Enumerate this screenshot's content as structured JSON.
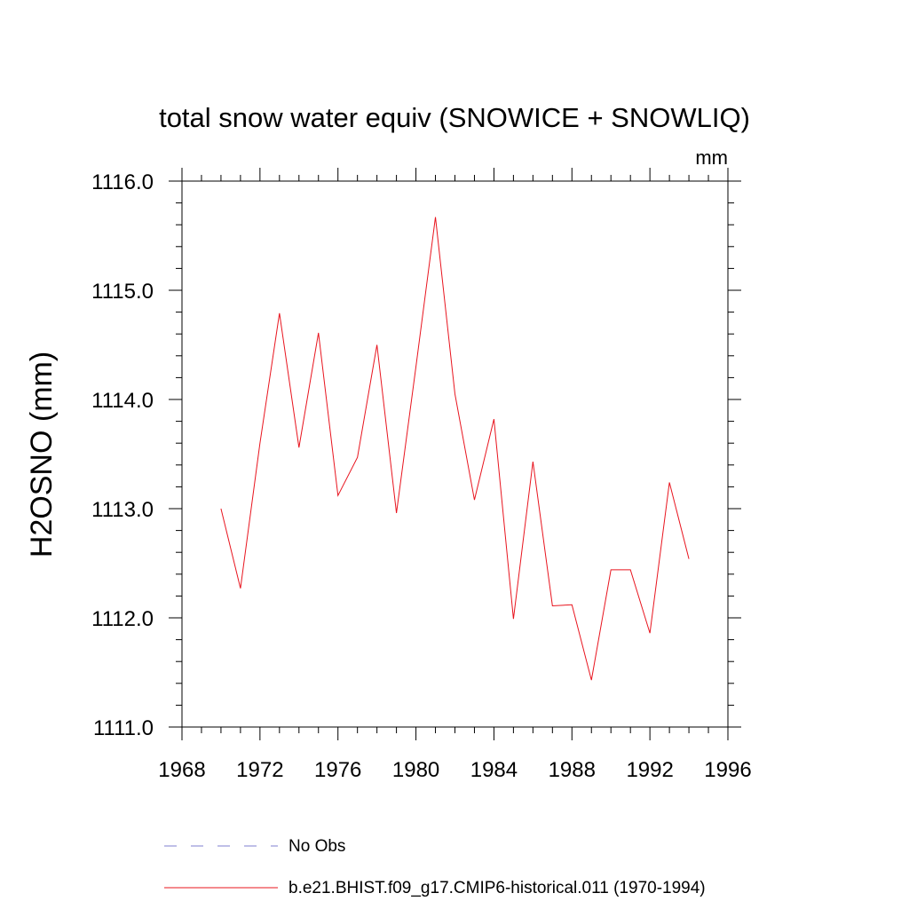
{
  "chart_data": {
    "type": "line",
    "title": "total snow water equiv (SNOWICE + SNOWLIQ)",
    "units": "mm",
    "xlabel": "",
    "ylabel": "H2OSNO  (mm)",
    "xlim": [
      1968,
      1996
    ],
    "ylim": [
      1111.0,
      1116.0
    ],
    "grid": false,
    "x_ticks": [
      1968,
      1972,
      1976,
      1980,
      1984,
      1988,
      1992,
      1996
    ],
    "x_tick_labels": [
      "1968",
      "1972",
      "1976",
      "1980",
      "1984",
      "1988",
      "1992",
      "1996"
    ],
    "y_ticks": [
      1111.0,
      1112.0,
      1113.0,
      1114.0,
      1115.0,
      1116.0
    ],
    "y_tick_labels": [
      "1111.0",
      "1112.0",
      "1113.0",
      "1114.0",
      "1115.0",
      "1116.0"
    ],
    "x_minor_step": 1,
    "y_minor_step": 0.2,
    "legend_position": "bottom",
    "series": [
      {
        "name": "No Obs",
        "color": "#7f7fd0",
        "dash": "dashed",
        "x": [],
        "values": []
      },
      {
        "name": "b.e21.BHIST.f09_g17.CMIP6-historical.011 (1970-1994)",
        "color": "#e8141e",
        "dash": "solid",
        "x": [
          1970,
          1971,
          1972,
          1973,
          1974,
          1975,
          1976,
          1977,
          1978,
          1979,
          1980,
          1981,
          1982,
          1983,
          1984,
          1985,
          1986,
          1987,
          1988,
          1989,
          1990,
          1991,
          1992,
          1993,
          1994
        ],
        "values": [
          1113.0,
          1112.27,
          1113.6,
          1114.79,
          1113.56,
          1114.61,
          1113.12,
          1113.47,
          1114.5,
          1112.96,
          1114.3,
          1115.67,
          1114.05,
          1113.08,
          1113.82,
          1111.99,
          1113.43,
          1112.11,
          1112.12,
          1111.43,
          1112.44,
          1112.44,
          1111.86,
          1113.24,
          1112.54
        ]
      }
    ]
  }
}
